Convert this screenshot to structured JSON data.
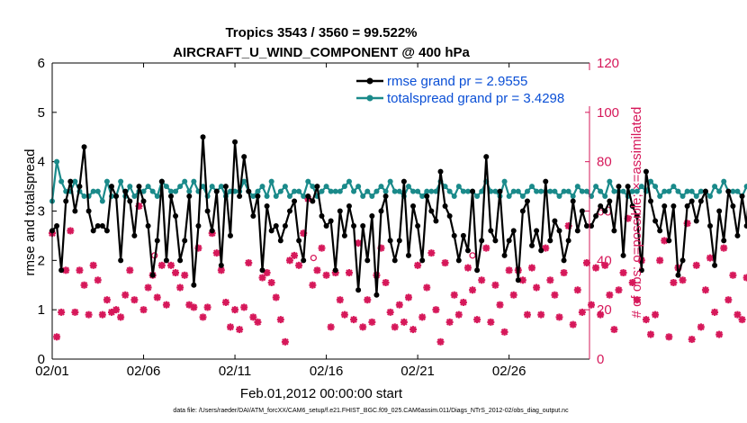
{
  "chart_data": {
    "type": "line",
    "title": "Tropics 3543 / 3560 = 99.522%",
    "subtitle": "AIRCRAFT_U_WIND_COMPONENT @ 400 hPa",
    "xlabel": "Feb.01,2012 00:00:00 start",
    "ylabel": "rmse and totalspread",
    "y2label": "# of obs: o=possible; ×=assimilated",
    "xlim": [
      0,
      29.4
    ],
    "ylim": [
      0,
      6
    ],
    "y2lim": [
      0,
      120
    ],
    "x_ticks": [
      0,
      5,
      10,
      15,
      20,
      25
    ],
    "x_tick_labels": [
      "02/01",
      "02/06",
      "02/11",
      "02/16",
      "02/21",
      "02/26"
    ],
    "y_ticks": [
      0,
      1,
      2,
      3,
      4,
      5,
      6
    ],
    "y_tick_labels": [
      "0",
      "1",
      "2",
      "3",
      "4",
      "5",
      "6"
    ],
    "y2_ticks": [
      0,
      20,
      40,
      60,
      80,
      100,
      120
    ],
    "y2_tick_labels": [
      "0",
      "20",
      "40",
      "60",
      "80",
      "100",
      "120"
    ],
    "legend_position": "top-right",
    "footer": "data file: /Users/raeder/DAI/ATM_forcXX/CAM6_setup/f.e21.FHIST_BGC.f09_025.CAM6assim.011/Diags_NTrS_2012-02/obs_diag_output.nc",
    "colors": {
      "rmse": "#000000",
      "spread": "#1a8a8a",
      "obs": "#d6185a",
      "legend_text": "#0a4fd6",
      "y2axis": "#d6185a"
    },
    "series": [
      {
        "name": "rmse grand pr = 2.9555",
        "axis": "left",
        "marker": "filled-circle",
        "start": 0.0,
        "step": 0.25,
        "values": [
          2.6,
          2.7,
          1.8,
          3.2,
          3.6,
          3.0,
          3.5,
          4.3,
          3.0,
          2.6,
          2.7,
          2.7,
          2.6,
          3.5,
          3.3,
          2.0,
          3.4,
          3.2,
          2.5,
          3.5,
          3.2,
          2.7,
          1.7,
          2.4,
          3.6,
          2.0,
          3.3,
          2.9,
          2.0,
          2.4,
          3.3,
          1.5,
          2.7,
          4.5,
          3.0,
          2.6,
          3.4,
          1.9,
          3.5,
          2.5,
          4.4,
          3.3,
          4.1,
          3.4,
          2.9,
          3.3,
          1.8,
          3.1,
          2.6,
          2.7,
          2.4,
          2.7,
          3.0,
          3.2,
          2.4,
          2.0,
          3.3,
          3.2,
          3.5,
          2.9,
          2.7,
          2.8,
          1.8,
          3.0,
          2.5,
          3.1,
          2.7,
          1.4,
          2.7,
          2.0,
          2.9,
          1.3,
          3.0,
          3.3,
          2.4,
          2.0,
          2.4,
          3.6,
          2.1,
          3.1,
          2.7,
          2.0,
          3.3,
          3.0,
          2.8,
          3.8,
          3.1,
          2.9,
          2.5,
          2.0,
          2.5,
          2.2,
          3.4,
          1.8,
          2.4,
          4.1,
          2.6,
          2.4,
          3.4,
          2.1,
          2.4,
          2.6,
          1.6,
          3.0,
          3.2,
          2.3,
          2.6,
          2.2,
          3.6,
          2.4,
          2.8,
          2.6,
          2.0,
          2.4,
          3.2,
          2.6,
          3.0,
          2.7,
          2.7,
          2.9,
          3.1,
          3.0,
          3.2,
          2.6,
          3.5,
          2.1,
          3.5,
          3.1,
          2.9,
          1.8,
          3.8,
          3.2,
          2.8,
          2.6,
          3.1,
          2.4,
          3.1,
          1.7,
          2.0,
          3.1,
          3.2,
          2.8,
          3.2,
          3.4,
          2.7,
          1.9,
          3.0,
          2.4,
          3.4,
          3.1,
          2.5,
          3.3,
          2.7,
          4.0,
          3.3,
          3.1,
          3.2,
          3.1,
          2.6,
          3.2,
          2.9,
          2.4,
          3.1,
          3.7,
          3.3,
          2.8,
          3.4,
          3.3,
          2.3,
          2.6,
          3.1,
          2.7,
          3.5,
          2.6,
          3.5,
          3.5,
          2.9,
          3.0,
          2.0,
          3.3,
          2.5,
          3.1,
          2.7,
          2.4,
          3.2,
          2.7,
          2.4,
          3.0,
          2.8,
          2.2,
          3.0,
          3.1,
          2.7,
          3.4,
          1.8,
          3.3,
          2.9,
          2.5,
          2.9,
          2.3,
          2.8,
          2.9,
          2.7,
          3.0,
          2.1,
          5.3,
          2.9,
          2.3,
          2.7,
          2.4,
          2.9,
          3.3,
          3.4,
          4.5,
          2.7,
          4.3,
          3.6,
          3.2,
          3.7,
          2.8,
          3.0,
          3.9,
          3.2,
          2.7,
          3.3,
          2.3,
          3.6,
          3.0,
          2.6,
          2.8,
          2.9,
          3.1,
          2.3,
          2.8,
          2.6,
          3.5,
          3.4,
          2.4,
          3.2,
          3.1,
          3.4,
          2.7,
          2.8,
          3.6,
          2.8,
          3.3,
          2.3,
          2.0,
          3.2,
          2.8,
          2.4,
          3.4,
          2.1,
          3.4,
          3.0,
          2.6,
          2.9,
          2.3,
          2.9,
          2.6,
          2.5,
          1.8
        ]
      },
      {
        "name": "totalspread grand pr = 3.4298",
        "axis": "left",
        "marker": "filled-circle",
        "start": 0.0,
        "step": 0.25,
        "values": [
          3.2,
          4.0,
          3.6,
          3.4,
          3.4,
          3.6,
          3.4,
          3.3,
          3.3,
          3.4,
          3.4,
          3.2,
          3.6,
          3.3,
          3.3,
          3.6,
          3.3,
          3.5,
          3.3,
          3.4,
          3.4,
          3.5,
          3.4,
          3.3,
          3.6,
          3.5,
          3.4,
          3.4,
          3.5,
          3.6,
          3.4,
          3.6,
          3.4,
          3.5,
          3.3,
          3.5,
          3.4,
          3.5,
          3.3,
          3.4,
          3.4,
          3.4,
          3.6,
          3.4,
          3.3,
          3.4,
          3.5,
          3.3,
          3.6,
          3.3,
          3.4,
          3.5,
          3.3,
          3.4,
          3.4,
          3.3,
          3.6,
          3.5,
          3.3,
          3.4,
          3.5,
          3.4,
          3.4,
          3.4,
          3.5,
          3.6,
          3.4,
          3.5,
          3.3,
          3.4,
          3.3,
          3.4,
          3.5,
          3.4,
          3.6,
          3.4,
          3.4,
          3.3,
          3.5,
          3.4,
          3.4,
          3.3,
          3.4,
          3.4,
          3.4,
          3.6,
          3.5,
          3.4,
          3.3,
          3.5,
          3.4,
          3.4,
          3.4,
          3.3,
          3.4,
          3.6,
          3.4,
          3.4,
          3.3,
          3.6,
          3.3,
          3.4,
          3.4,
          3.3,
          3.4,
          3.5,
          3.4,
          3.4,
          3.4,
          3.4,
          3.4,
          3.3,
          3.4,
          3.4,
          3.3,
          3.5,
          3.4,
          3.4,
          3.3,
          3.5,
          3.4,
          3.3,
          3.6,
          3.4,
          3.4,
          3.4,
          3.3,
          3.4,
          3.4,
          3.5,
          3.4,
          3.6,
          3.5,
          3.3,
          3.4,
          3.4,
          3.5,
          3.4,
          3.3,
          3.4,
          3.4,
          3.3,
          3.4,
          3.4,
          3.3,
          3.5,
          3.4,
          3.6,
          3.4,
          3.4,
          3.4,
          3.3,
          3.5,
          3.4,
          3.4,
          3.3,
          3.5,
          3.4,
          3.3,
          3.6,
          3.4,
          3.4,
          3.5,
          3.4,
          3.3,
          3.4,
          3.4,
          3.3,
          3.5,
          3.4,
          3.4,
          3.4,
          3.3,
          3.4,
          3.5,
          3.4,
          3.3,
          3.4,
          3.6,
          3.3,
          3.4,
          3.5,
          3.4,
          3.4,
          3.4,
          3.3,
          3.5,
          3.3,
          3.4,
          3.4,
          3.5,
          3.3,
          3.4,
          3.6,
          3.4,
          3.4,
          3.4,
          3.3,
          3.5,
          3.4,
          3.4,
          3.5,
          3.4,
          3.3,
          3.4,
          3.4,
          3.4,
          3.3,
          3.5,
          3.4,
          3.4,
          3.6,
          3.5,
          3.4,
          3.3,
          3.4,
          3.5,
          3.4,
          3.4,
          3.5,
          3.3,
          3.4,
          3.4,
          3.6,
          3.3,
          3.4,
          3.5,
          3.4,
          3.4,
          3.3,
          3.4,
          3.4,
          3.5,
          3.4,
          3.3,
          3.4,
          3.6,
          3.4,
          3.3,
          3.4,
          3.5,
          3.4,
          3.4,
          3.3,
          3.4,
          3.5,
          3.4,
          3.3,
          3.4,
          3.5,
          3.4,
          3.4,
          3.6,
          3.4,
          3.3,
          3.5,
          3.4,
          3.3,
          3.5,
          3.4,
          3.3
        ]
      },
      {
        "name": "obs possible / assimilated",
        "axis": "right",
        "marker": "asterisk",
        "start": 0.0,
        "step": 0.25,
        "values": [
          51,
          9,
          19,
          36,
          52,
          19,
          36,
          30,
          18,
          38,
          32,
          18,
          24,
          19,
          20,
          17,
          26,
          36,
          24,
          62,
          20,
          29,
          34,
          25,
          38,
          22,
          38,
          35,
          29,
          34,
          22,
          21,
          45,
          17,
          21,
          51,
          43,
          36,
          23,
          13,
          20,
          12,
          21,
          39,
          17,
          15,
          33,
          35,
          31,
          25,
          16,
          7,
          40,
          42,
          38,
          51,
          65,
          30,
          36,
          45,
          34,
          13,
          35,
          24,
          18,
          35,
          16,
          47,
          13,
          24,
          15,
          34,
          45,
          31,
          19,
          13,
          22,
          15,
          25,
          12,
          38,
          17,
          29,
          43,
          20,
          7,
          39,
          15,
          26,
          18,
          23,
          37,
          28,
          16,
          32,
          45,
          15,
          30,
          22,
          11,
          36,
          26,
          36,
          32,
          18,
          37,
          29,
          18,
          45,
          32,
          26,
          17,
          35,
          54,
          14,
          28,
          19,
          39,
          22,
          37,
          18,
          38,
          26,
          12,
          28,
          35,
          57,
          31,
          24,
          40,
          16,
          10,
          18,
          40,
          48,
          9,
          31,
          37,
          32,
          55,
          8,
          38,
          13,
          28,
          41,
          19,
          10,
          45,
          24,
          34,
          18,
          16,
          33,
          18,
          35,
          26,
          24,
          45,
          40,
          24,
          33,
          11,
          20,
          26,
          47,
          15,
          33,
          21,
          39,
          46,
          10,
          24,
          37,
          27,
          13,
          22,
          28,
          48,
          17,
          13,
          34,
          38,
          23,
          31,
          15,
          12,
          36,
          21,
          26,
          35,
          41,
          30,
          17,
          24,
          37,
          33,
          13,
          22,
          38,
          26,
          16,
          35,
          27,
          23,
          30,
          11,
          21,
          35,
          39,
          28,
          16,
          32,
          24,
          37,
          44,
          18,
          30,
          25,
          14,
          38,
          26,
          21,
          33,
          17,
          29,
          41,
          23,
          15,
          35,
          27,
          42,
          19,
          31,
          24,
          37,
          16,
          29,
          40,
          22,
          33,
          26,
          18,
          34,
          28,
          21,
          36,
          38,
          17,
          30,
          24,
          39,
          13,
          22,
          33,
          38,
          0
        ]
      }
    ],
    "annotations": [
      {
        "type": "possible-marker",
        "x": 5.6,
        "y2": 42
      },
      {
        "type": "possible-marker",
        "x": 14.3,
        "y2": 41
      },
      {
        "type": "possible-marker",
        "x": 23.0,
        "y2": 42
      }
    ]
  }
}
